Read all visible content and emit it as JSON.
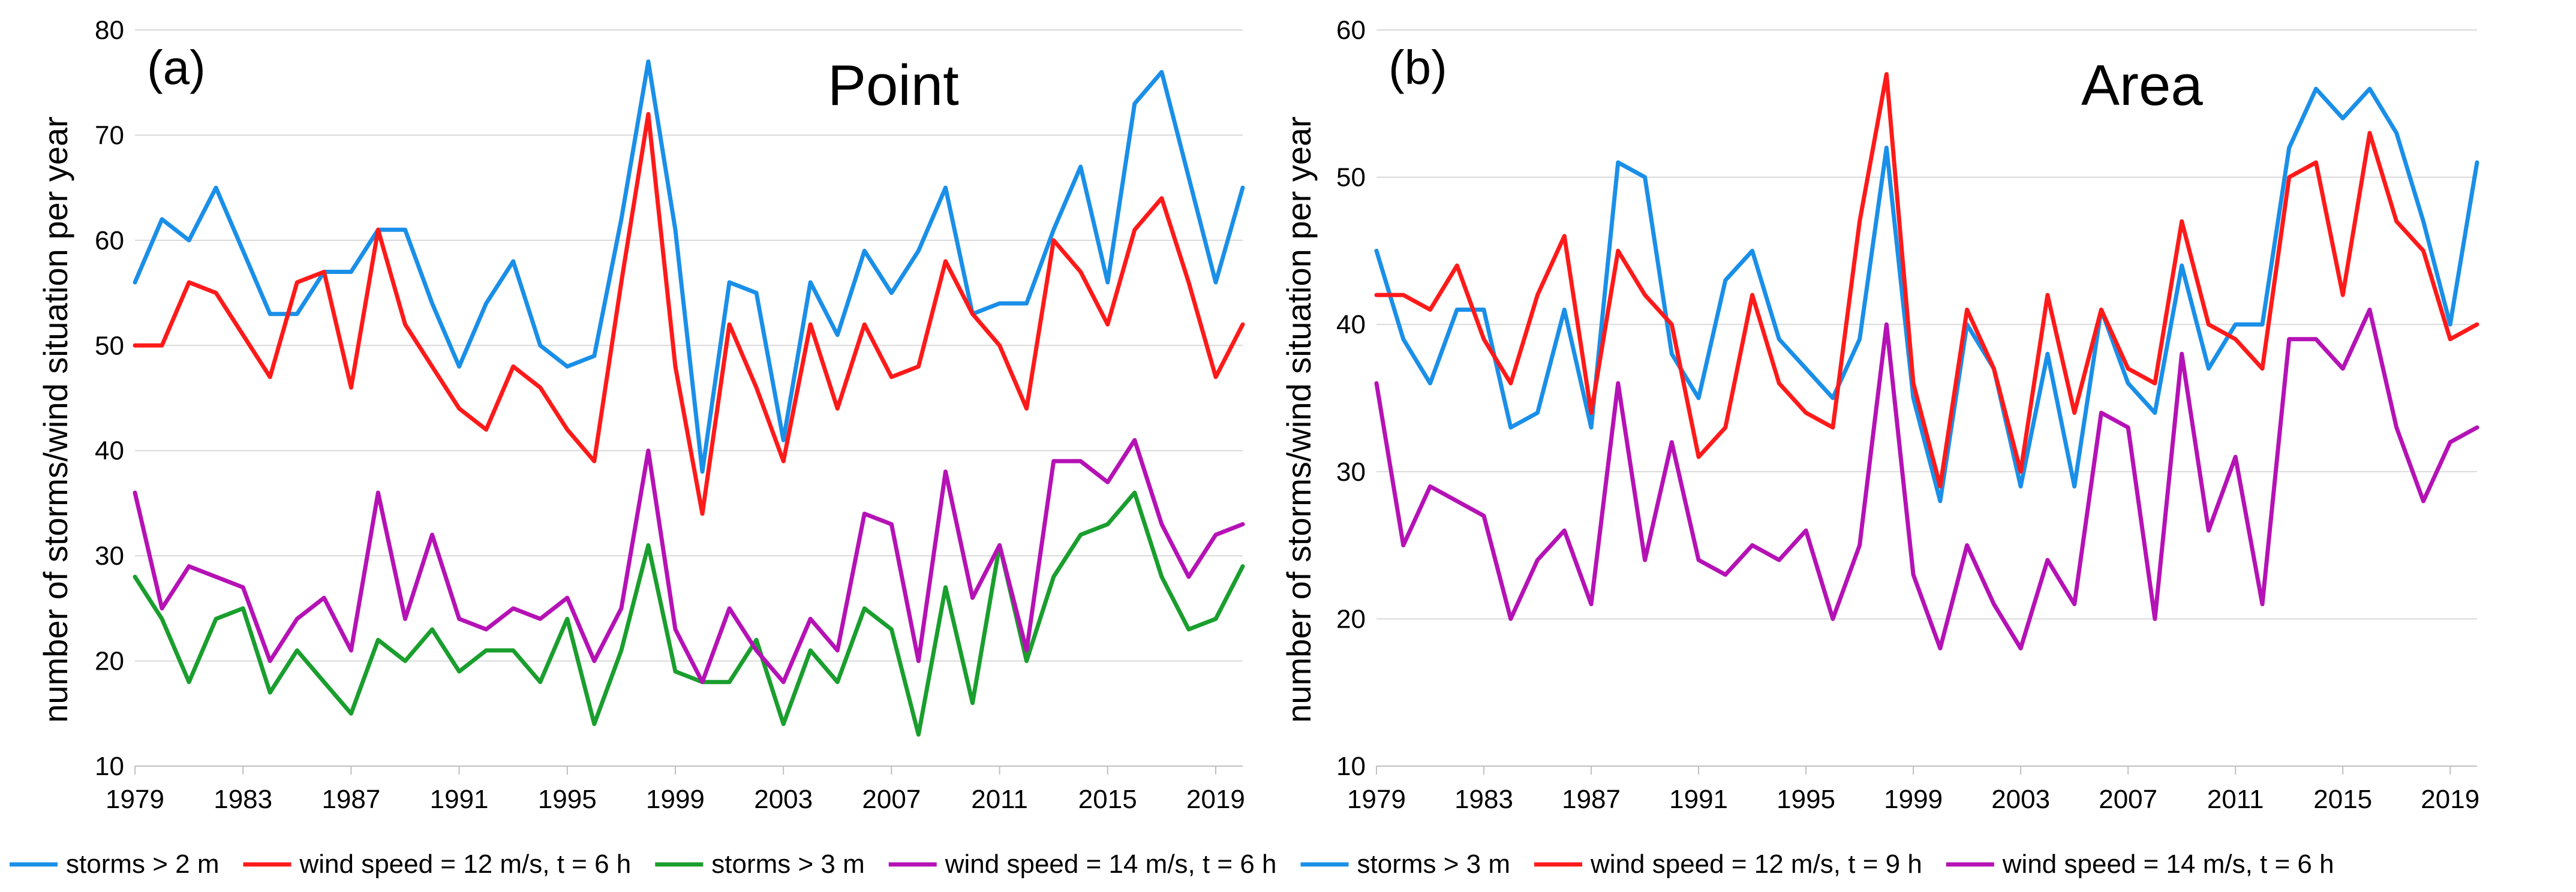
{
  "chart_data": [
    {
      "type": "line",
      "panel_label": "(a)",
      "title": "Point",
      "ylabel": "number of storms/wind situation per year",
      "xlabel": "",
      "ylim": [
        10,
        80
      ],
      "yticks": [
        10,
        20,
        30,
        40,
        50,
        60,
        70,
        80
      ],
      "xlim": [
        1979,
        2020
      ],
      "xticks": [
        1979,
        1983,
        1987,
        1991,
        1995,
        1999,
        2003,
        2007,
        2011,
        2015,
        2019
      ],
      "grid": true,
      "x": [
        1979,
        1980,
        1981,
        1982,
        1983,
        1984,
        1985,
        1986,
        1987,
        1988,
        1989,
        1990,
        1991,
        1992,
        1993,
        1994,
        1995,
        1996,
        1997,
        1998,
        1999,
        2000,
        2001,
        2002,
        2003,
        2004,
        2005,
        2006,
        2007,
        2008,
        2009,
        2010,
        2011,
        2012,
        2013,
        2014,
        2015,
        2016,
        2017,
        2018,
        2019,
        2020
      ],
      "series": [
        {
          "name": "storms > 2 m",
          "color": "#1a8fe8",
          "values": [
            56,
            62,
            60,
            65,
            59,
            53,
            53,
            57,
            57,
            61,
            61,
            54,
            48,
            54,
            58,
            50,
            48,
            49,
            62,
            77,
            61,
            38,
            56,
            55,
            41,
            56,
            51,
            59,
            55,
            59,
            65,
            53,
            54,
            54,
            61,
            67,
            56,
            73,
            76,
            66,
            56,
            65
          ]
        },
        {
          "name": "wind speed = 12 m/s, t = 6 h",
          "color": "#ff1a1a",
          "values": [
            50,
            50,
            56,
            55,
            51,
            47,
            56,
            57,
            46,
            61,
            52,
            48,
            44,
            42,
            48,
            46,
            42,
            39,
            56,
            72,
            48,
            34,
            52,
            46,
            39,
            52,
            44,
            52,
            47,
            48,
            58,
            53,
            50,
            44,
            60,
            57,
            52,
            61,
            64,
            56,
            47,
            52
          ]
        },
        {
          "name": "storms > 3 m",
          "color": "#1a9e2e",
          "values": [
            28,
            24,
            18,
            24,
            25,
            17,
            21,
            18,
            15,
            22,
            20,
            23,
            19,
            21,
            21,
            18,
            24,
            14,
            21,
            31,
            19,
            18,
            18,
            22,
            14,
            21,
            18,
            25,
            23,
            13,
            27,
            16,
            31,
            20,
            28,
            32,
            33,
            36,
            28,
            23,
            24,
            29
          ]
        },
        {
          "name": "wind speed = 14 m/s, t = 6 h",
          "color": "#b512b5",
          "values": [
            36,
            25,
            29,
            28,
            27,
            20,
            24,
            26,
            21,
            36,
            24,
            32,
            24,
            23,
            25,
            24,
            26,
            20,
            25,
            40,
            23,
            18,
            25,
            21,
            18,
            24,
            21,
            34,
            33,
            20,
            38,
            26,
            31,
            21,
            39,
            39,
            37,
            41,
            33,
            28,
            32,
            33
          ]
        }
      ]
    },
    {
      "type": "line",
      "panel_label": "(b)",
      "title": "Area",
      "ylabel": "number of storms/wind situation per year",
      "xlabel": "",
      "ylim": [
        10,
        60
      ],
      "yticks": [
        10,
        20,
        30,
        40,
        50,
        60
      ],
      "xlim": [
        1979,
        2020
      ],
      "xticks": [
        1979,
        1983,
        1987,
        1991,
        1995,
        1999,
        2003,
        2007,
        2011,
        2015,
        2019
      ],
      "grid": true,
      "x": [
        1979,
        1980,
        1981,
        1982,
        1983,
        1984,
        1985,
        1986,
        1987,
        1988,
        1989,
        1990,
        1991,
        1992,
        1993,
        1994,
        1995,
        1996,
        1997,
        1998,
        1999,
        2000,
        2001,
        2002,
        2003,
        2004,
        2005,
        2006,
        2007,
        2008,
        2009,
        2010,
        2011,
        2012,
        2013,
        2014,
        2015,
        2016,
        2017,
        2018,
        2019,
        2020
      ],
      "series": [
        {
          "name": "storms > 3 m",
          "color": "#1a8fe8",
          "values": [
            45,
            39,
            36,
            41,
            41,
            33,
            34,
            41,
            33,
            51,
            50,
            38,
            35,
            43,
            45,
            39,
            37,
            35,
            39,
            52,
            35,
            28,
            40,
            37,
            29,
            38,
            29,
            41,
            36,
            34,
            44,
            37,
            40,
            40,
            52,
            56,
            54,
            56,
            53,
            47,
            40,
            51
          ]
        },
        {
          "name": "wind speed = 12 m/s, t = 9 h",
          "color": "#ff1a1a",
          "values": [
            42,
            42,
            41,
            44,
            39,
            36,
            42,
            46,
            34,
            45,
            42,
            40,
            31,
            33,
            42,
            36,
            34,
            33,
            47,
            57,
            36,
            29,
            41,
            37,
            30,
            42,
            34,
            41,
            37,
            36,
            47,
            40,
            39,
            37,
            50,
            51,
            42,
            53,
            47,
            45,
            39,
            40
          ]
        },
        {
          "name": "wind speed = 14 m/s, t = 6 h",
          "color": "#b512b5",
          "values": [
            36,
            25,
            29,
            28,
            27,
            20,
            24,
            26,
            21,
            36,
            24,
            32,
            24,
            23,
            25,
            24,
            26,
            20,
            25,
            40,
            23,
            18,
            25,
            21,
            18,
            24,
            21,
            34,
            33,
            20,
            38,
            26,
            31,
            21,
            39,
            39,
            37,
            41,
            33,
            28,
            32,
            33
          ]
        }
      ]
    }
  ]
}
